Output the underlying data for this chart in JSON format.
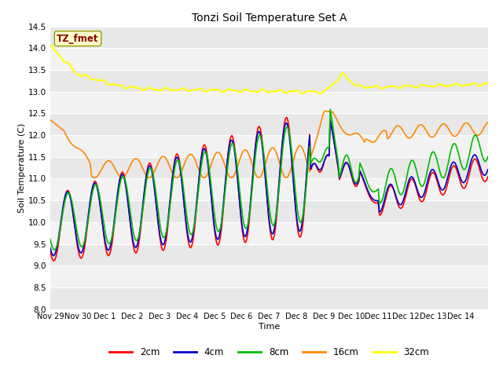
{
  "title": "Tonzi Soil Temperature Set A",
  "xlabel": "Time",
  "ylabel": "Soil Temperature (C)",
  "ylim": [
    8.0,
    14.5
  ],
  "annotation_text": "TZ_fmet",
  "annotation_color": "#8B0000",
  "annotation_bg": "#FFFFCC",
  "annotation_border": "#999900",
  "line_colors": {
    "2cm": "#FF0000",
    "4cm": "#0000CC",
    "8cm": "#00BB00",
    "16cm": "#FF8800",
    "32cm": "#FFFF00"
  },
  "legend_labels": [
    "2cm",
    "4cm",
    "8cm",
    "16cm",
    "32cm"
  ],
  "fig_bg_color": "#FFFFFF",
  "plot_bg_alt1": "#EBEBEB",
  "plot_bg_alt2": "#F5F5F5",
  "grid_color": "#FFFFFF",
  "tick_labels": [
    "Nov 29",
    "Nov 30",
    "Dec 1",
    "Dec 2",
    "Dec 3",
    "Dec 4",
    "Dec 5",
    "Dec 6",
    "Dec 7",
    "Dec 8",
    "Dec 9",
    "Dec 10",
    "Dec 11",
    "Dec 12",
    "Dec 13",
    "Dec 14"
  ]
}
